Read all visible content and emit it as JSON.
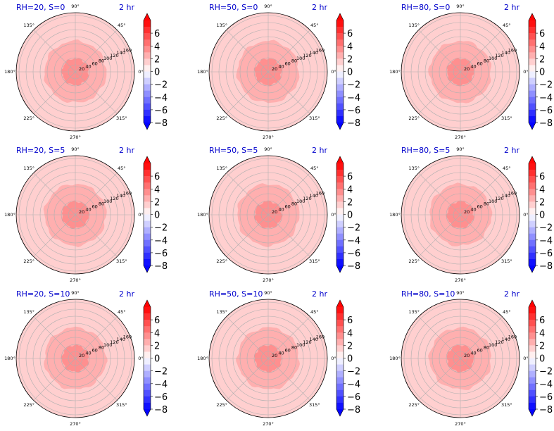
{
  "chart_data": {
    "type": "heatmap",
    "projection": "polar",
    "grid": true,
    "colormap": "bwr",
    "colorbar": {
      "ticks": [
        6,
        4,
        2,
        0,
        -2,
        -4,
        -6,
        -8
      ],
      "tick_labels": [
        "6",
        "4",
        "2",
        "0",
        "−2",
        "−4",
        "−6",
        "−8"
      ],
      "range": [
        -8,
        8
      ],
      "extend": "both"
    },
    "angle_labels": [
      "0°",
      "45°",
      "90°",
      "135°",
      "180°",
      "225°",
      "270°",
      "315°"
    ],
    "radial_ticks": [
      "20",
      "40",
      "60",
      "80",
      "100",
      "120",
      "140",
      "160"
    ],
    "panels": [
      {
        "title": "RH=20, S=0",
        "time": "2 hr",
        "inner_value": 3.5,
        "middle_value": 2.6,
        "outer_value": 1.8,
        "edge_value": 1.0
      },
      {
        "title": "RH=50, S=0",
        "time": "2 hr",
        "inner_value": 3.5,
        "middle_value": 2.6,
        "outer_value": 1.8,
        "edge_value": 1.8
      },
      {
        "title": "RH=80, S=0",
        "time": "2 hr",
        "inner_value": 3.5,
        "middle_value": 2.6,
        "outer_value": 1.8,
        "edge_value": 1.8
      },
      {
        "title": "RH=20, S=5",
        "time": "2 hr",
        "inner_value": 3.5,
        "middle_value": 2.6,
        "outer_value": 1.8,
        "edge_value": 1.0
      },
      {
        "title": "RH=50, S=5",
        "time": "2 hr",
        "inner_value": 3.5,
        "middle_value": 2.6,
        "outer_value": 1.8,
        "edge_value": 1.0
      },
      {
        "title": "RH=80, S=5",
        "time": "2 hr",
        "inner_value": 3.5,
        "middle_value": 2.6,
        "outer_value": 1.8,
        "edge_value": 1.8
      },
      {
        "title": "RH=20, S=10",
        "time": "2 hr",
        "inner_value": 3.5,
        "middle_value": 2.6,
        "outer_value": 1.8,
        "edge_value": 1.0
      },
      {
        "title": "RH=50, S=10",
        "time": "2 hr",
        "inner_value": 3.5,
        "middle_value": 2.6,
        "outer_value": 1.8,
        "edge_value": 1.8
      },
      {
        "title": "RH=80, S=10",
        "time": "2 hr",
        "inner_value": 3.5,
        "middle_value": 2.6,
        "outer_value": 1.8,
        "edge_value": 1.8
      }
    ]
  }
}
